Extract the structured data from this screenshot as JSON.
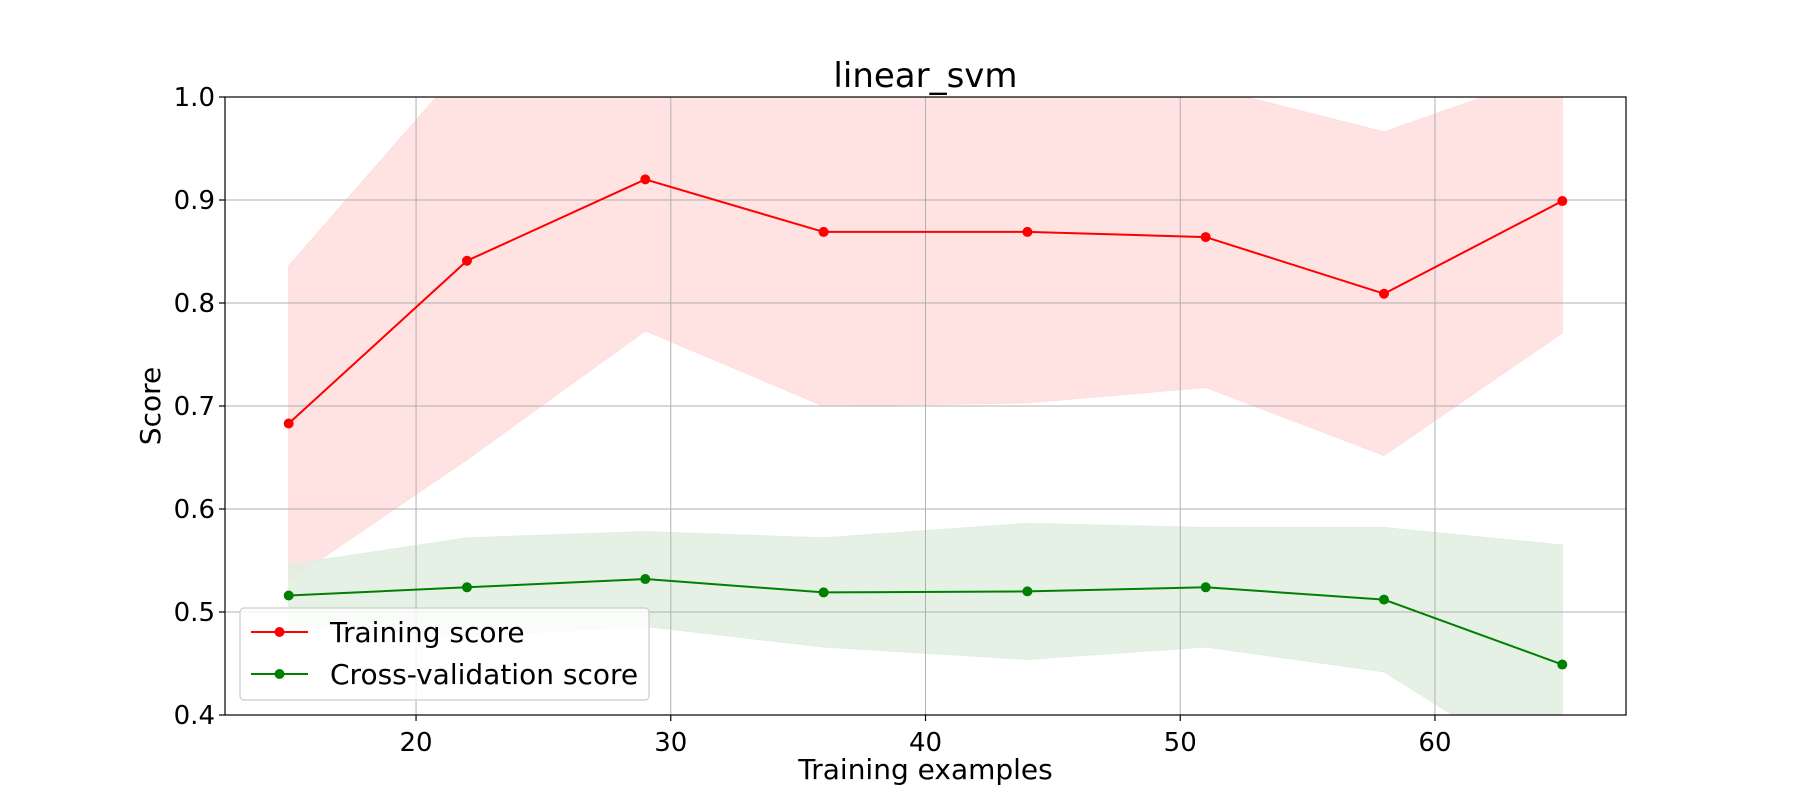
{
  "chart_data": {
    "type": "line",
    "title": "linear_svm",
    "xlabel": "Training examples",
    "ylabel": "Score",
    "xlim": [
      12.5,
      67.5
    ],
    "ylim": [
      0.4,
      1.0
    ],
    "xticks": [
      20,
      30,
      40,
      50,
      60
    ],
    "yticks": [
      0.4,
      0.5,
      0.6,
      0.7,
      0.8,
      0.9,
      1.0
    ],
    "grid": true,
    "legend_position": "lower-left",
    "x": [
      15,
      22,
      29,
      36,
      44,
      51,
      58,
      65
    ],
    "series": [
      {
        "name": "Training score",
        "color": "#ff0000",
        "band_color": "#ffdddd",
        "values": [
          0.683,
          0.841,
          0.92,
          0.869,
          0.869,
          0.864,
          0.809,
          0.899
        ],
        "lower": [
          0.53,
          0.648,
          0.773,
          0.7,
          0.703,
          0.718,
          0.652,
          0.771
        ],
        "upper": [
          0.836,
          1.034,
          1.067,
          1.038,
          1.035,
          1.01,
          0.966,
          1.027
        ]
      },
      {
        "name": "Cross-validation score",
        "color": "#008000",
        "band_color": "#e0efe0",
        "values": [
          0.516,
          0.524,
          0.532,
          0.519,
          0.52,
          0.524,
          0.512,
          0.449
        ],
        "lower": [
          0.486,
          0.476,
          0.486,
          0.466,
          0.454,
          0.466,
          0.442,
          0.333
        ],
        "upper": [
          0.546,
          0.572,
          0.578,
          0.572,
          0.586,
          0.582,
          0.582,
          0.565
        ]
      }
    ]
  }
}
